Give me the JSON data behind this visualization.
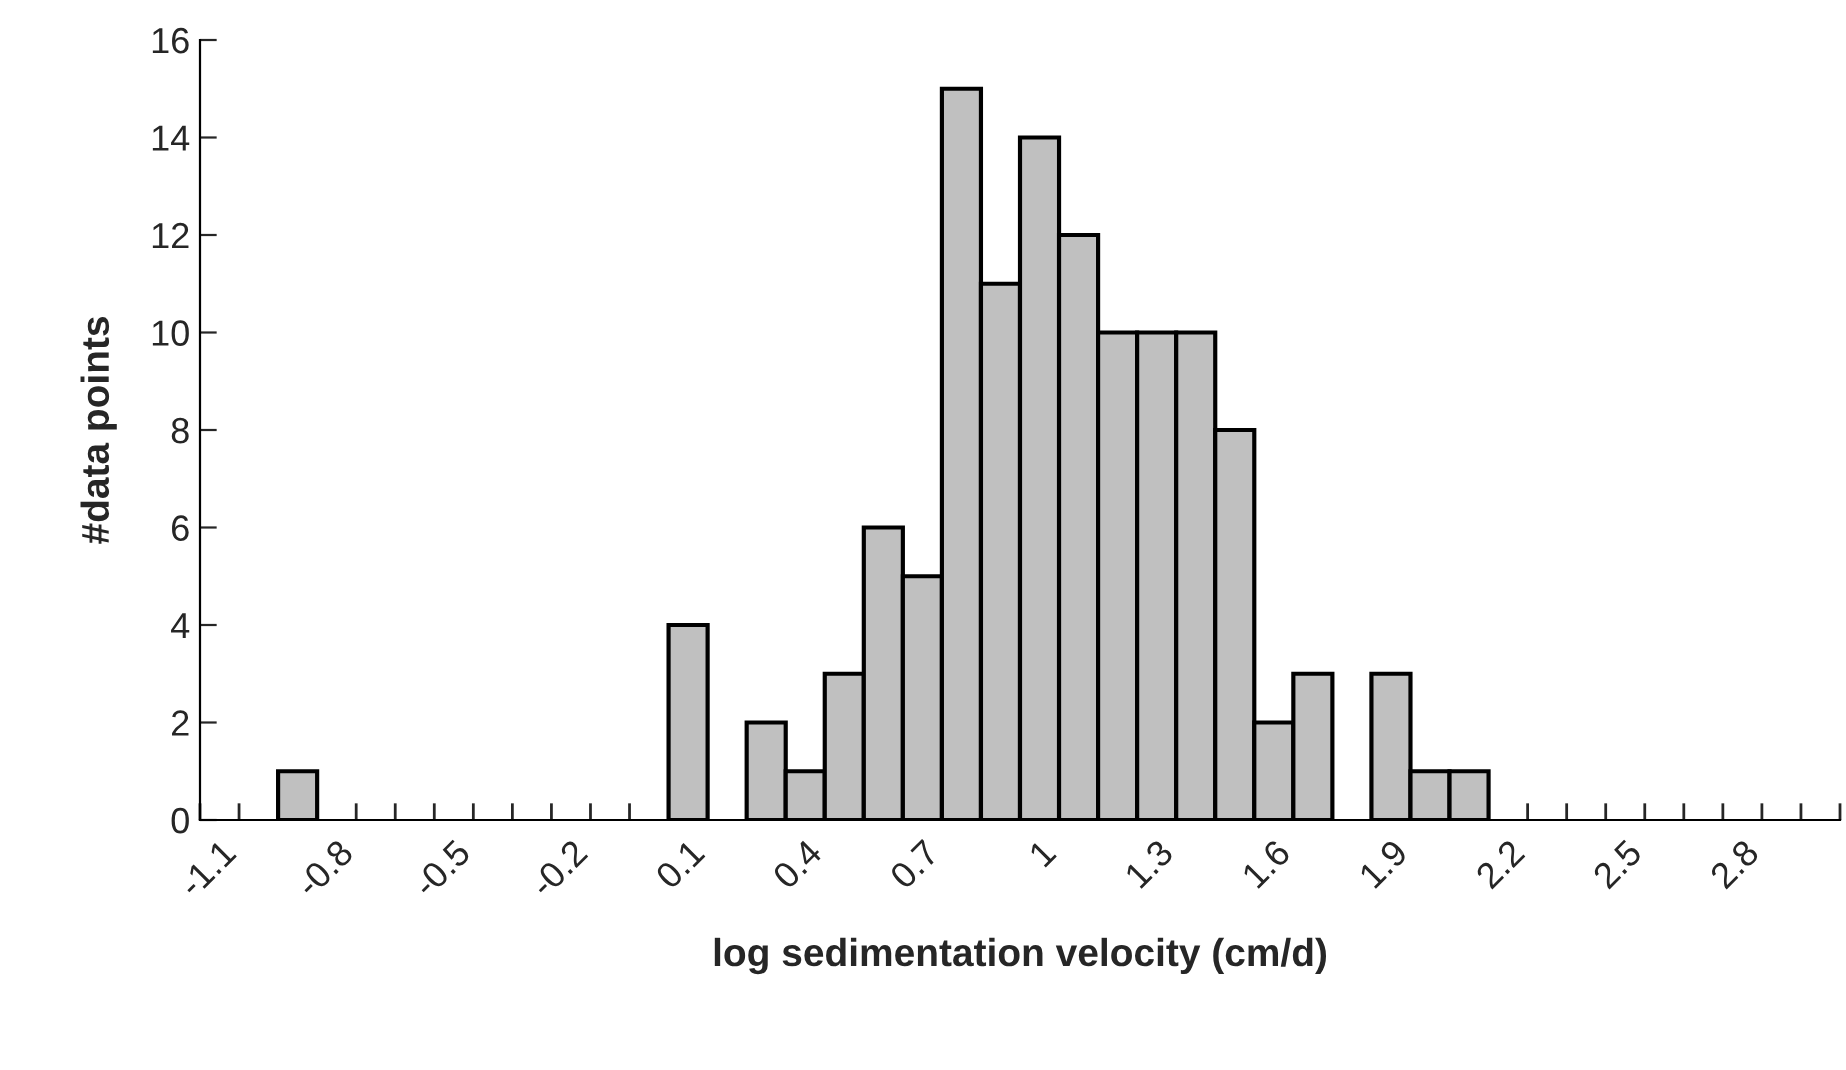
{
  "chart_data": {
    "type": "bar",
    "xlabel": "log sedimentation velocity (cm/d)",
    "ylabel": "#data points",
    "categories": [
      "-1.1",
      null,
      null,
      "-0.8",
      null,
      null,
      "-0.5",
      null,
      null,
      "-0.2",
      null,
      null,
      "0.1",
      null,
      null,
      "0.4",
      null,
      null,
      "0.7",
      null,
      null,
      "1",
      null,
      null,
      "1.3",
      null,
      null,
      "1.6",
      null,
      null,
      "1.9",
      null,
      null,
      "2.2",
      null,
      null,
      "2.5",
      null,
      null,
      "2.8",
      null,
      null
    ],
    "values": [
      0,
      0,
      1,
      0,
      0,
      0,
      0,
      0,
      0,
      0,
      0,
      0,
      4,
      0,
      2,
      1,
      3,
      6,
      5,
      15,
      11,
      14,
      12,
      10,
      10,
      10,
      8,
      2,
      3,
      0,
      3,
      1,
      1,
      0,
      0,
      0,
      0,
      0,
      0,
      0,
      0,
      0
    ],
    "color": "#c0c0c0",
    "ylim": [
      0,
      16
    ],
    "yticks": [
      0,
      2,
      4,
      6,
      8,
      10,
      12,
      14,
      16
    ],
    "grid": false,
    "legend": false
  }
}
